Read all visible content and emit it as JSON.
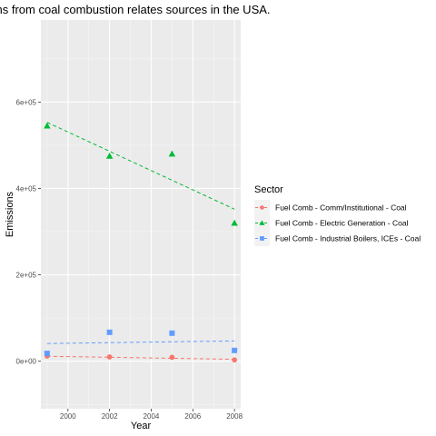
{
  "chart_data": {
    "type": "scatter",
    "title": "Emissions from coal combustion relates sources in the USA.",
    "xlabel": "Year",
    "ylabel": "Emissions",
    "xlim": [
      1998.7,
      2008.3
    ],
    "ylim": [
      -110000,
      790000
    ],
    "x_ticks": [
      2000,
      2002,
      2004,
      2006,
      2008
    ],
    "x_tick_labels": [
      "2000",
      "2002",
      "2004",
      "2006",
      "2008"
    ],
    "y_ticks": [
      0,
      200000,
      400000,
      600000
    ],
    "y_tick_labels": [
      "0e+00",
      "2e+05",
      "4e+05",
      "6e+05"
    ],
    "grid": true,
    "legend": {
      "title": "Sector",
      "position": "right"
    },
    "series": [
      {
        "name": "Fuel Comb - Comm/Institutional - Coal",
        "color": "#F8766D",
        "shape": "circle",
        "x": [
          1999,
          2002,
          2005,
          2008
        ],
        "y": [
          12000,
          10000,
          9000,
          3000
        ],
        "trend": [
          11500,
          4500
        ]
      },
      {
        "name": "Fuel Comb - Electric Generation - Coal",
        "color": "#00BA38",
        "shape": "triangle",
        "x": [
          1999,
          2002,
          2005,
          2008
        ],
        "y": [
          545000,
          475000,
          480000,
          320000
        ],
        "trend": [
          553000,
          352000
        ]
      },
      {
        "name": "Fuel Comb - Industrial Boilers, ICEs - Coal",
        "color": "#619CFF",
        "shape": "square",
        "x": [
          1999,
          2002,
          2005,
          2008
        ],
        "y": [
          18000,
          67000,
          65000,
          25000
        ],
        "trend": [
          41000,
          47000
        ]
      }
    ]
  }
}
